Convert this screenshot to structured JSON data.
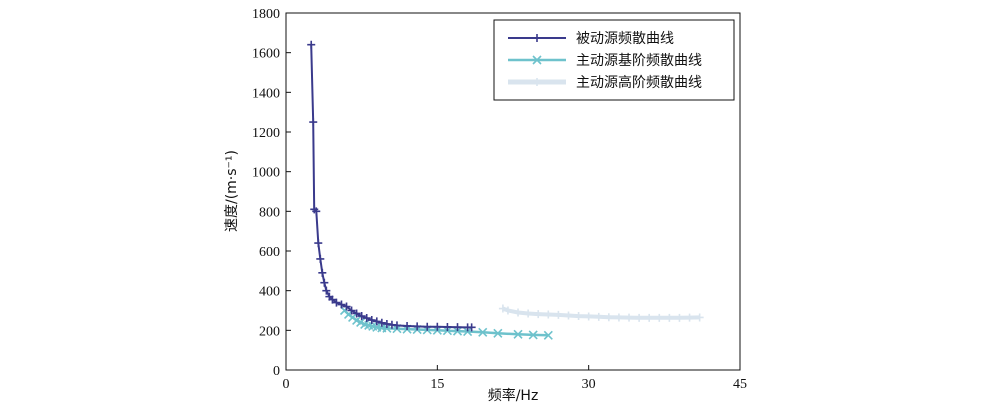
{
  "chart_data": {
    "type": "line",
    "xlabel": "频率/Hz",
    "ylabel": "速度/(m·s⁻¹)",
    "xlim": [
      0,
      45
    ],
    "ylim": [
      0,
      1800
    ],
    "xticks": [
      "0",
      "15",
      "30",
      "45"
    ],
    "yticks": [
      "0",
      "200",
      "400",
      "600",
      "800",
      "1000",
      "1200",
      "1400",
      "1600",
      "1800"
    ],
    "grid": false,
    "legend_position": "top-right",
    "series": [
      {
        "name": "被动源频散曲线",
        "color": "#3a3a8c",
        "marker": "+",
        "points": [
          [
            2.5,
            1640
          ],
          [
            2.7,
            1250
          ],
          [
            2.8,
            810
          ],
          [
            3.0,
            800
          ],
          [
            3.2,
            640
          ],
          [
            3.4,
            560
          ],
          [
            3.6,
            490
          ],
          [
            3.8,
            440
          ],
          [
            4.0,
            400
          ],
          [
            4.3,
            370
          ],
          [
            4.6,
            355
          ],
          [
            5.0,
            340
          ],
          [
            5.5,
            330
          ],
          [
            6.0,
            320
          ],
          [
            6.5,
            300
          ],
          [
            7.0,
            285
          ],
          [
            7.5,
            272
          ],
          [
            8.0,
            262
          ],
          [
            8.5,
            252
          ],
          [
            9.0,
            245
          ],
          [
            9.5,
            238
          ],
          [
            10.0,
            232
          ],
          [
            10.5,
            228
          ],
          [
            11.0,
            225
          ],
          [
            12.0,
            222
          ],
          [
            13.0,
            220
          ],
          [
            14.0,
            218
          ],
          [
            15.0,
            218
          ],
          [
            16.0,
            217
          ],
          [
            17.0,
            216
          ],
          [
            18.0,
            215
          ],
          [
            18.4,
            215
          ]
        ]
      },
      {
        "name": "主动源基阶频散曲线",
        "color": "#6ec2cc",
        "marker": "x",
        "points": [
          [
            5.8,
            300
          ],
          [
            6.2,
            280
          ],
          [
            6.6,
            265
          ],
          [
            7.0,
            250
          ],
          [
            7.4,
            240
          ],
          [
            7.8,
            230
          ],
          [
            8.2,
            225
          ],
          [
            8.6,
            220
          ],
          [
            9.0,
            215
          ],
          [
            9.5,
            212
          ],
          [
            10.0,
            210
          ],
          [
            11.0,
            208
          ],
          [
            12.0,
            206
          ],
          [
            13.0,
            204
          ],
          [
            14.0,
            202
          ],
          [
            15.0,
            200
          ],
          [
            16.0,
            198
          ],
          [
            17.0,
            196
          ],
          [
            18.0,
            194
          ],
          [
            19.5,
            190
          ],
          [
            21.0,
            185
          ],
          [
            23.0,
            180
          ],
          [
            24.5,
            177
          ],
          [
            26.0,
            175
          ]
        ]
      },
      {
        "name": "主动源高阶频散曲线",
        "color": "#d9e4ee",
        "marker": "+",
        "points": [
          [
            21.5,
            310
          ],
          [
            22.0,
            300
          ],
          [
            23.0,
            290
          ],
          [
            24.0,
            285
          ],
          [
            25.0,
            282
          ],
          [
            26.0,
            280
          ],
          [
            27.0,
            278
          ],
          [
            28.0,
            275
          ],
          [
            29.0,
            272
          ],
          [
            30.0,
            270
          ],
          [
            31.0,
            268
          ],
          [
            32.0,
            266
          ],
          [
            33.0,
            265
          ],
          [
            34.0,
            264
          ],
          [
            35.0,
            263
          ],
          [
            36.0,
            263
          ],
          [
            37.0,
            263
          ],
          [
            38.0,
            263
          ],
          [
            39.0,
            263
          ],
          [
            40.0,
            264
          ],
          [
            41.0,
            265
          ]
        ]
      }
    ]
  }
}
